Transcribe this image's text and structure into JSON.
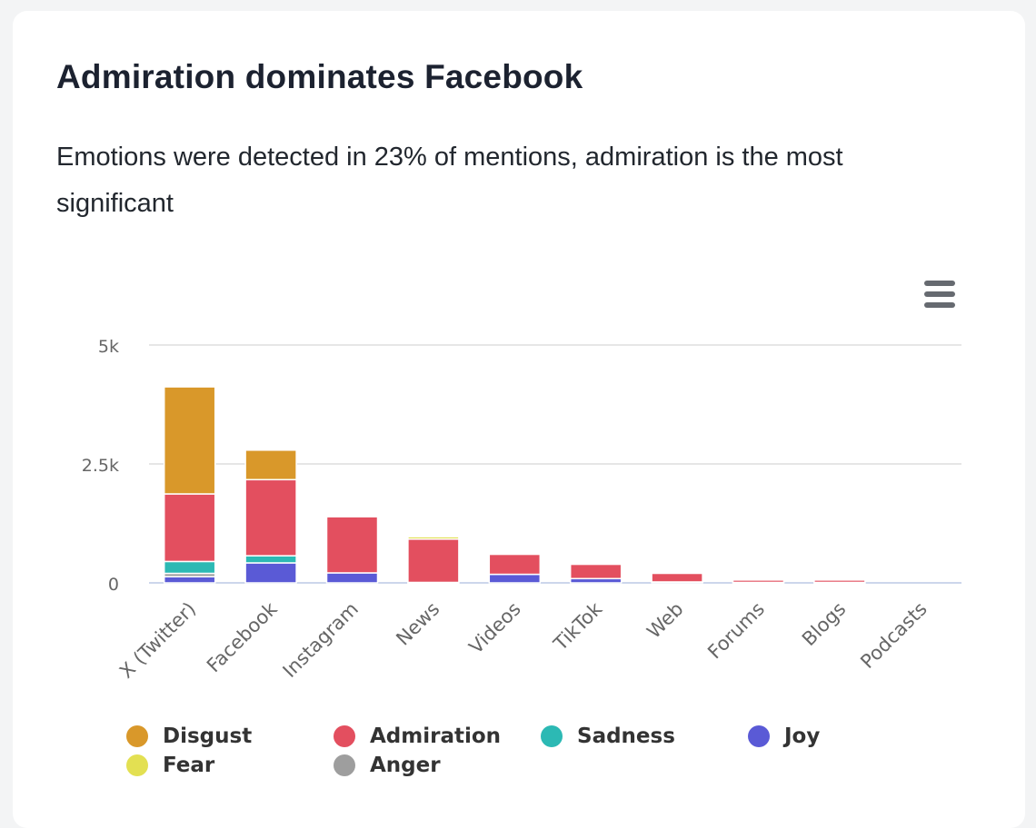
{
  "card": {
    "title": "Admiration dominates Facebook",
    "subtitle": "Emotions were detected in 23% of mentions, admiration is the most significant",
    "menu_icon": "hamburger-menu-icon"
  },
  "chart_data": {
    "type": "bar",
    "stacked": true,
    "categories": [
      "X (Twitter)",
      "Facebook",
      "Instagram",
      "News",
      "Videos",
      "TikTok",
      "Web",
      "Forums",
      "Blogs",
      "Podcasts"
    ],
    "series": [
      {
        "name": "Joy",
        "color": "#5a5ad6",
        "values": [
          130,
          420,
          210,
          0,
          180,
          90,
          20,
          10,
          10,
          0
        ]
      },
      {
        "name": "Anger",
        "color": "#9e9e9e",
        "values": [
          70,
          0,
          0,
          10,
          0,
          0,
          0,
          0,
          0,
          0
        ]
      },
      {
        "name": "Sadness",
        "color": "#2cb9b4",
        "values": [
          250,
          150,
          0,
          0,
          0,
          0,
          0,
          0,
          0,
          0
        ]
      },
      {
        "name": "Admiration",
        "color": "#e34f5f",
        "values": [
          1420,
          1600,
          1180,
          910,
          420,
          300,
          180,
          50,
          50,
          0
        ]
      },
      {
        "name": "Fear",
        "color": "#e3e052",
        "values": [
          0,
          0,
          0,
          50,
          0,
          0,
          0,
          0,
          0,
          0
        ]
      },
      {
        "name": "Disgust",
        "color": "#d9982a",
        "values": [
          2250,
          620,
          0,
          0,
          0,
          0,
          0,
          0,
          0,
          0
        ]
      }
    ],
    "legend_order": [
      "Disgust",
      "Admiration",
      "Sadness",
      "Joy",
      "Fear",
      "Anger"
    ],
    "y_ticks": [
      {
        "value": 0,
        "label": "0"
      },
      {
        "value": 2500,
        "label": "2.5k"
      },
      {
        "value": 5000,
        "label": "5k"
      }
    ],
    "ylim": [
      0,
      5000
    ],
    "title": "",
    "xlabel": "",
    "ylabel": "",
    "grid": true,
    "legend_position": "bottom",
    "gridline_color": "#e6e6e6",
    "axis_color": "#ccd6eb"
  }
}
